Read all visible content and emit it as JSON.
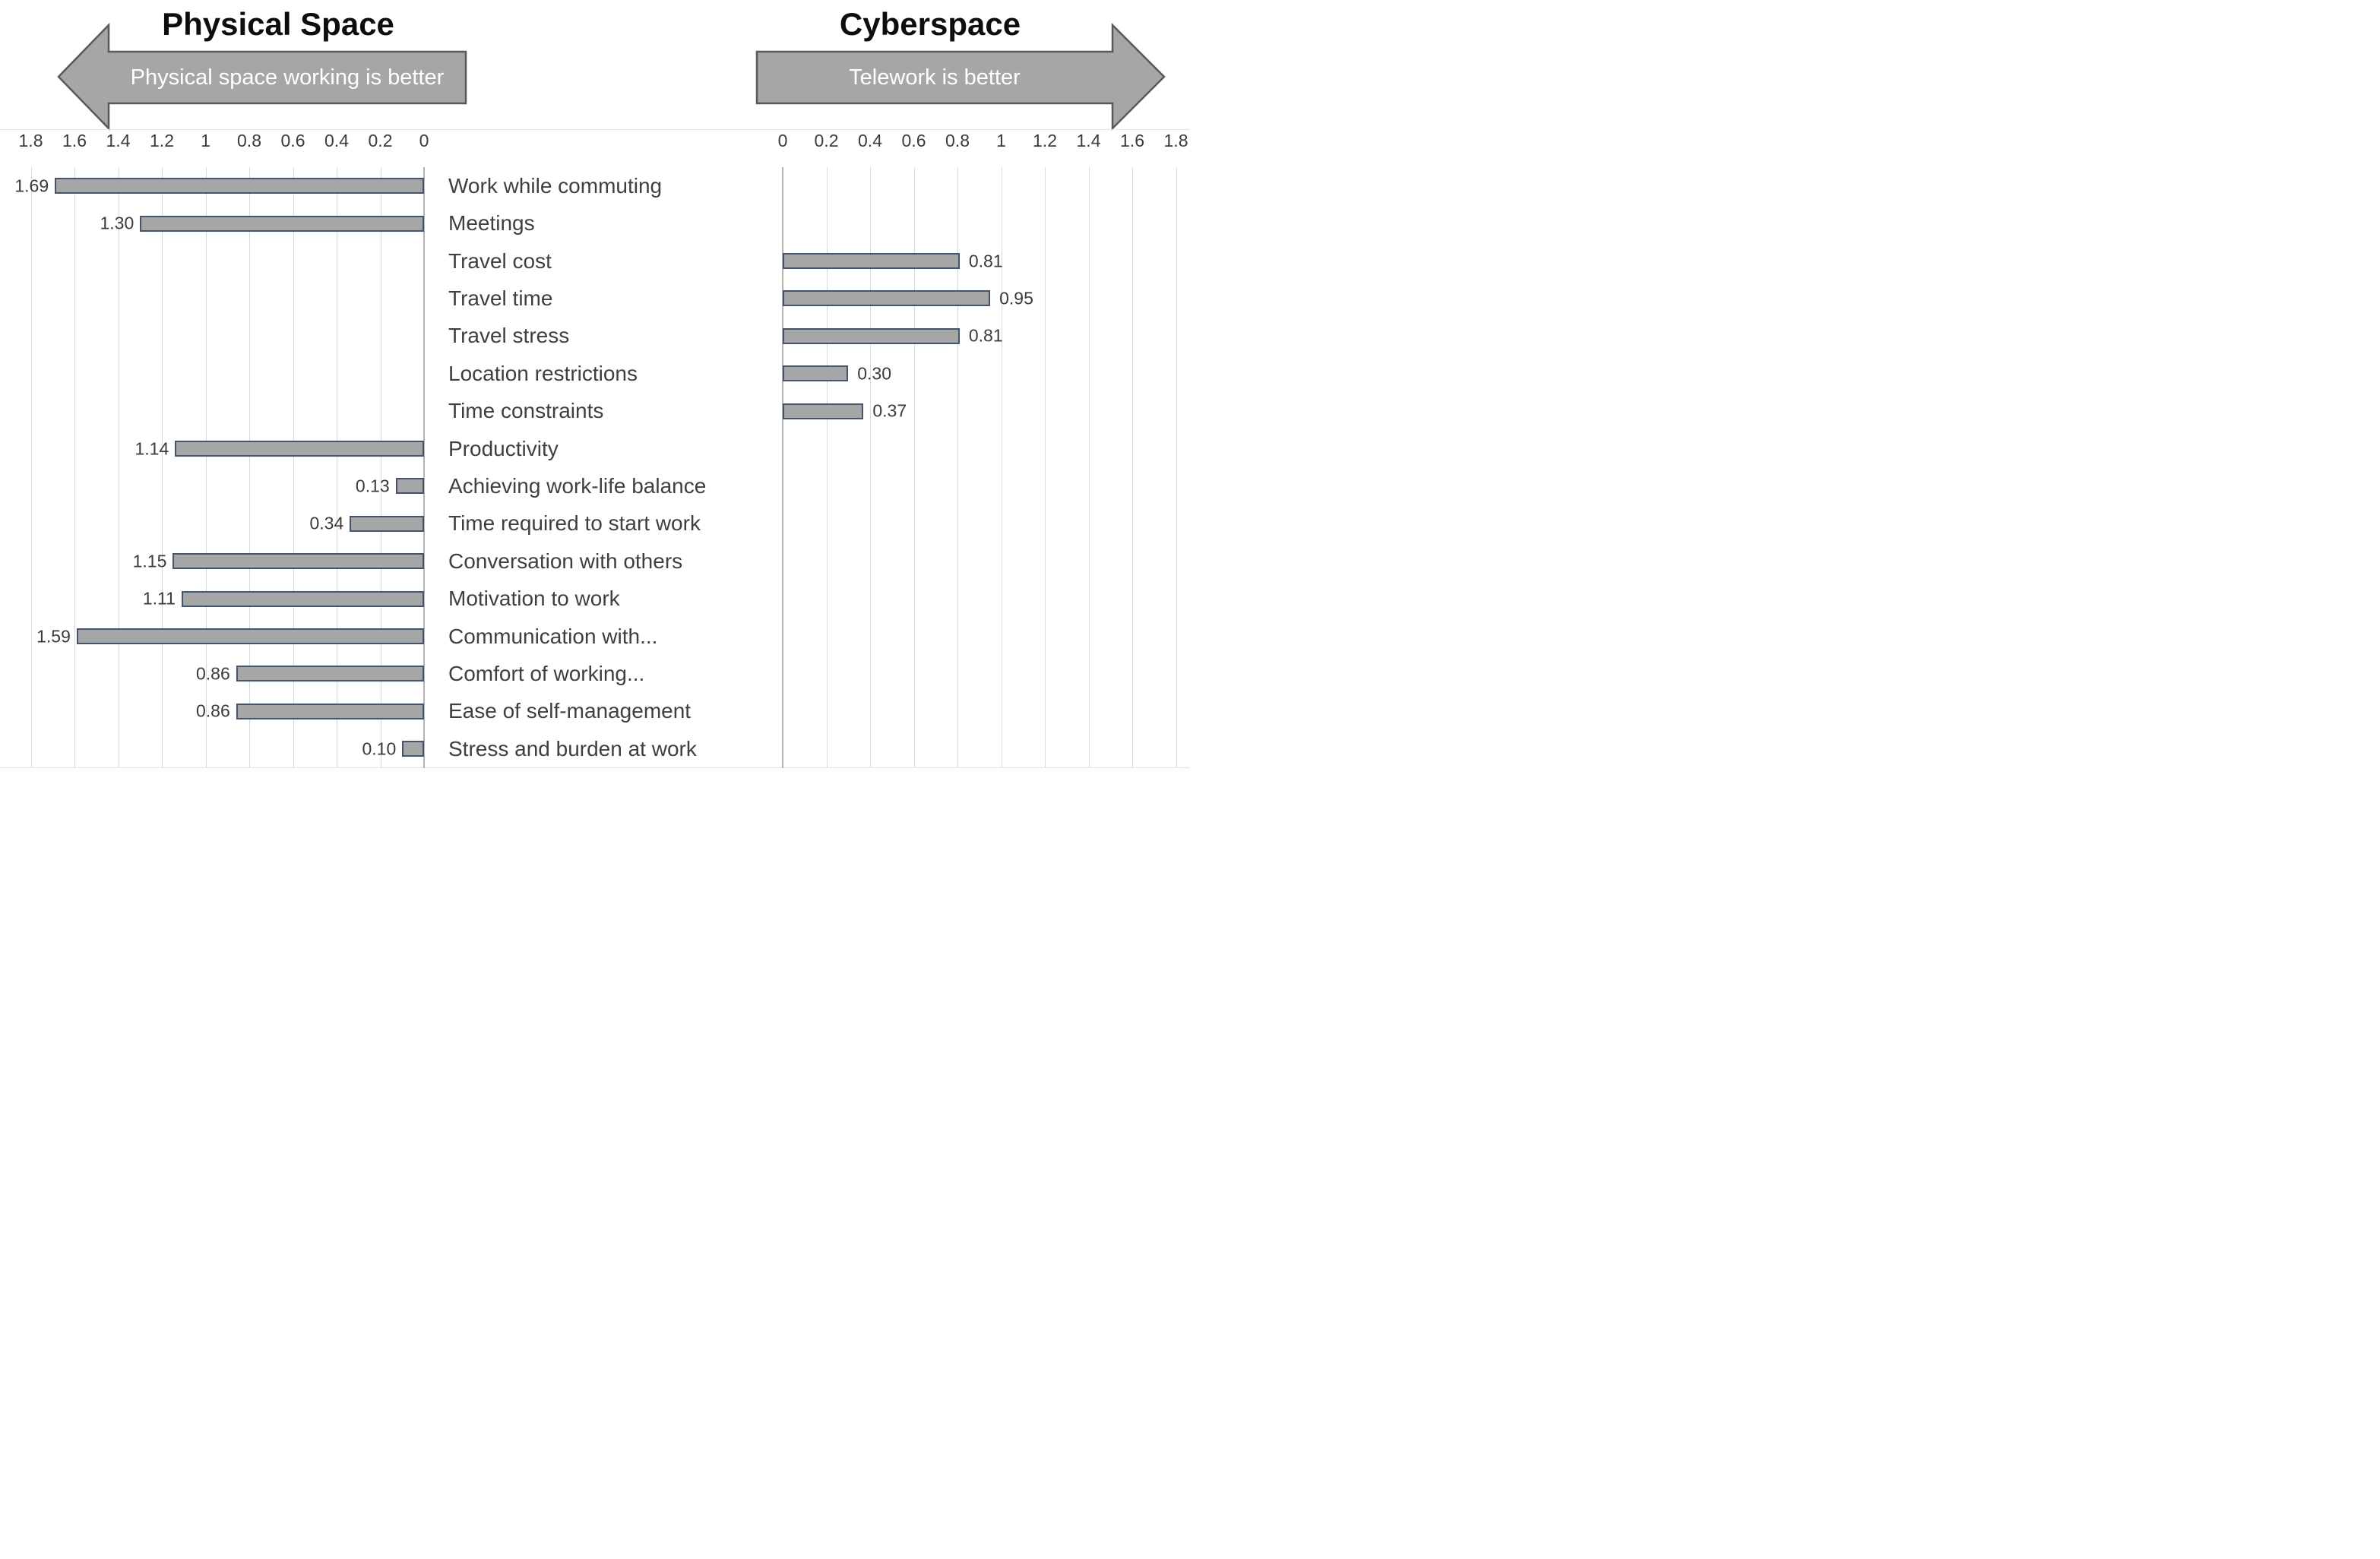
{
  "header": {
    "left_title": "Physical Space",
    "right_title": "Cyberspace",
    "left_arrow_label": "Physical space working is better",
    "right_arrow_label": "Telework is better"
  },
  "colors": {
    "bar_fill": "#a6a6a6",
    "bar_border": "#44546a",
    "arrow_fill": "#a6a6a6",
    "arrow_border": "#595959",
    "gridline": "#d9d9d9",
    "axis_line": "#b3b3b3",
    "category_text": "#3f3f3f",
    "value_text": "#3b3b3b",
    "title_text": "#0d0d0d",
    "arrow_text": "#ffffff"
  },
  "chart_data": {
    "type": "bar",
    "orientation": "horizontal-diverging",
    "left_panel_title": "Physical Space",
    "right_panel_title": "Cyberspace",
    "axis": {
      "min": 0,
      "max": 1.8,
      "step": 0.2,
      "left_ticks": [
        "1.8",
        "1.6",
        "1.4",
        "1.2",
        "1",
        "0.8",
        "0.6",
        "0.4",
        "0.2",
        "0"
      ],
      "right_ticks": [
        "0",
        "0.2",
        "0.4",
        "0.6",
        "0.8",
        "1",
        "1.2",
        "1.4",
        "1.6",
        "1.8"
      ]
    },
    "grid": true,
    "rows": [
      {
        "label": "Work while commuting",
        "side": "left",
        "value": 1.69,
        "value_label": "1.69"
      },
      {
        "label": "Meetings",
        "side": "left",
        "value": 1.3,
        "value_label": "1.30"
      },
      {
        "label": "Travel cost",
        "side": "right",
        "value": 0.81,
        "value_label": "0.81"
      },
      {
        "label": "Travel time",
        "side": "right",
        "value": 0.95,
        "value_label": "0.95"
      },
      {
        "label": "Travel stress",
        "side": "right",
        "value": 0.81,
        "value_label": "0.81"
      },
      {
        "label": "Location restrictions",
        "side": "right",
        "value": 0.3,
        "value_label": "0.30"
      },
      {
        "label": "Time constraints",
        "side": "right",
        "value": 0.37,
        "value_label": "0.37"
      },
      {
        "label": "Productivity",
        "side": "left",
        "value": 1.14,
        "value_label": "1.14"
      },
      {
        "label": "Achieving work-life balance",
        "side": "left",
        "value": 0.13,
        "value_label": "0.13"
      },
      {
        "label": "Time required to start work",
        "side": "left",
        "value": 0.34,
        "value_label": "0.34"
      },
      {
        "label": "Conversation with others",
        "side": "left",
        "value": 1.15,
        "value_label": "1.15"
      },
      {
        "label": "Motivation to work",
        "side": "left",
        "value": 1.11,
        "value_label": "1.11"
      },
      {
        "label": "Communication with...",
        "side": "left",
        "value": 1.59,
        "value_label": "1.59"
      },
      {
        "label": "Comfort of working...",
        "side": "left",
        "value": 0.86,
        "value_label": "0.86"
      },
      {
        "label": "Ease of self-management",
        "side": "left",
        "value": 0.86,
        "value_label": "0.86"
      },
      {
        "label": "Stress and burden at work",
        "side": "left",
        "value": 0.1,
        "value_label": "0.10"
      }
    ]
  }
}
